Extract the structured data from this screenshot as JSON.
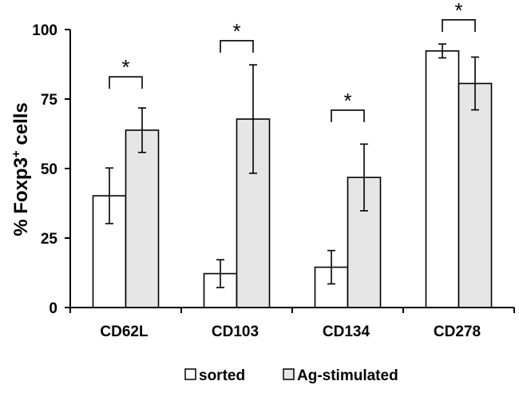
{
  "chart_data": {
    "type": "bar",
    "ylabel": {
      "prefix": "% Foxp3",
      "superscript": "+",
      "suffix": " cells"
    },
    "ylim": [
      0,
      100
    ],
    "yticks": [
      0,
      25,
      50,
      75,
      100
    ],
    "categories": [
      "CD62L",
      "CD103",
      "CD134",
      "CD278"
    ],
    "series": [
      {
        "name": "sorted",
        "color": "#ffffff",
        "values": [
          40.2,
          12.2,
          14.5,
          92.3
        ],
        "errors": [
          10,
          5,
          6,
          2.5
        ]
      },
      {
        "name": "Ag-stimulated",
        "color": "#e6e6e6",
        "values": [
          63.8,
          67.8,
          46.8,
          80.6
        ],
        "errors": [
          8,
          19.5,
          12,
          9.5
        ]
      }
    ],
    "significance": [
      {
        "category": "CD62L",
        "label": "*",
        "y": 83
      },
      {
        "category": "CD103",
        "label": "*",
        "y": 96
      },
      {
        "category": "CD134",
        "label": "*",
        "y": 71
      },
      {
        "category": "CD278",
        "label": "*",
        "y": 103.5
      }
    ],
    "legend": {
      "position": "bottom",
      "entries": [
        "sorted",
        "Ag-stimulated"
      ]
    }
  }
}
